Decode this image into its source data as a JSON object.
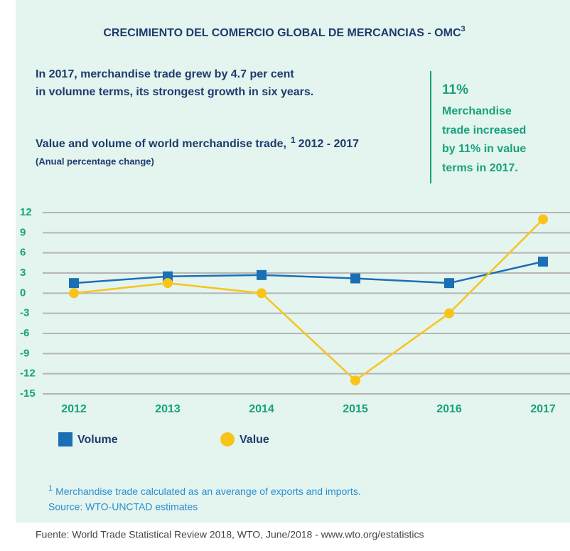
{
  "chart_data": {
    "type": "line",
    "title": "CRECIMIENTO DEL COMERCIO GLOBAL DE MERCANCIAS - OMC",
    "title_note": "3",
    "headline": [
      "In 2017, merchandise trade grew by 4.7 per cent",
      "in volumne terms, its strongest growth in six years."
    ],
    "subtitle": "Value and volume of world merchandise trade,",
    "subtitle_note": "1",
    "subtitle_years": "2012 - 2017",
    "unit_label": "(Anual percentage change)",
    "callout": {
      "value_text": "11%",
      "lines": [
        "Merchandise",
        "trade increased",
        "by 11% in value",
        "terms in 2017."
      ]
    },
    "categories": [
      "2012",
      "2013",
      "2014",
      "2015",
      "2016",
      "2017"
    ],
    "series": [
      {
        "name": "Volume",
        "color": "#1a6fb5",
        "marker": "square",
        "values": [
          1.5,
          2.5,
          2.7,
          2.2,
          1.5,
          4.7
        ]
      },
      {
        "name": "Value",
        "color": "#f8c41c",
        "marker": "circle",
        "values": [
          0,
          1.5,
          0,
          -13,
          -3,
          11
        ]
      }
    ],
    "ylim": [
      -15,
      12
    ],
    "yticks": [
      12,
      9,
      6,
      3,
      0,
      -3,
      -6,
      -9,
      -12,
      -15
    ],
    "grid": true,
    "footnote": {
      "marker": "1",
      "text": "Merchandise trade calculated as an averange of exports and imports."
    },
    "source": "Source: WTO-UNCTAD estimates",
    "credit": "Fuente: World Trade Statistical Review 2018, WTO, June/2018 - www.wto.org/estatistics"
  }
}
